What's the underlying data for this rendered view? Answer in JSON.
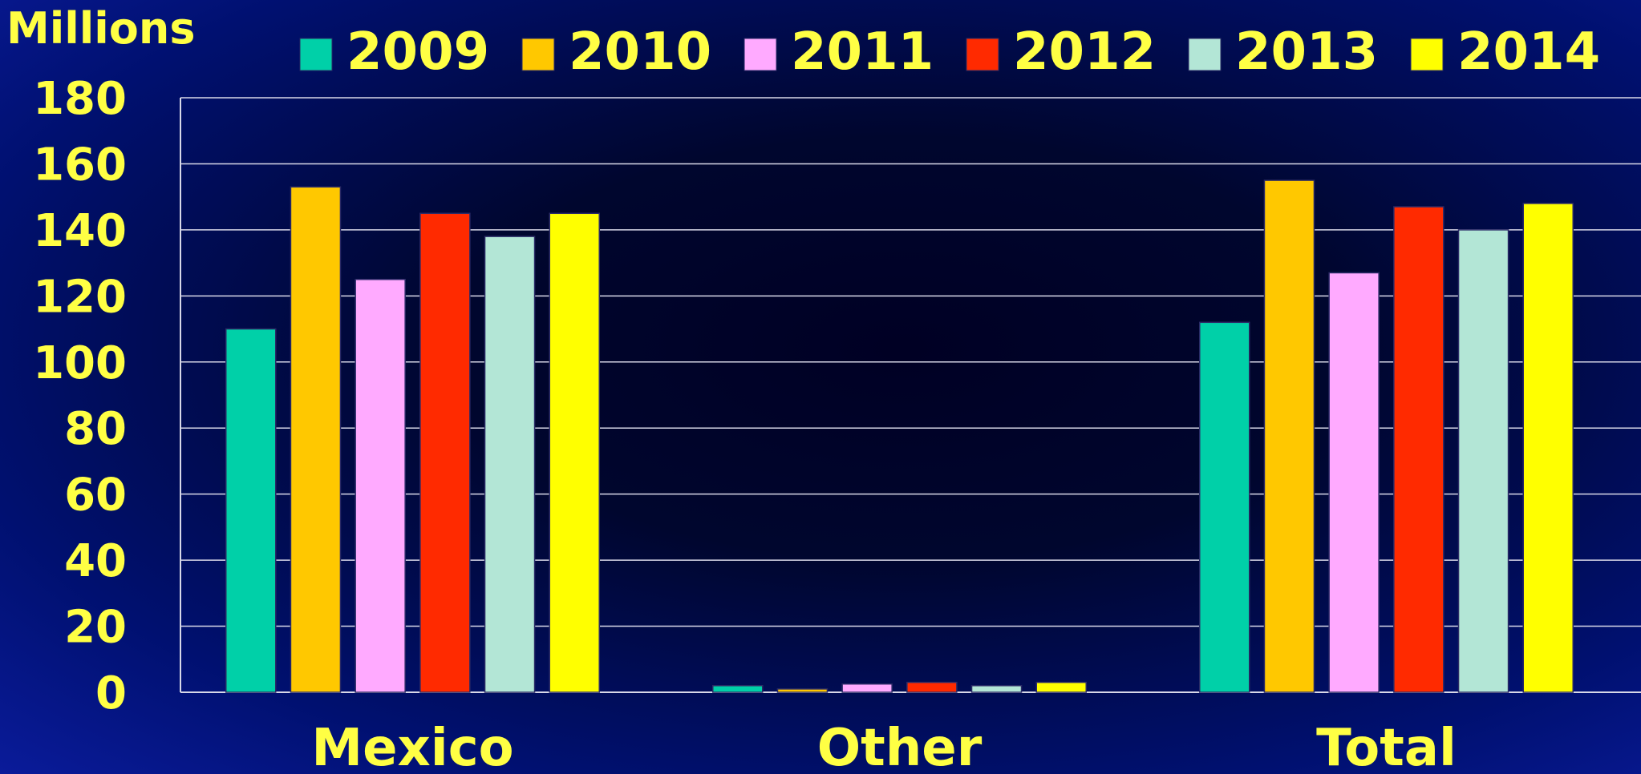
{
  "chart_data": {
    "type": "bar",
    "unit_label": "Millions",
    "categories": [
      "Mexico",
      "Other",
      "Total"
    ],
    "series": [
      {
        "name": "2009",
        "color": "#00d0a8",
        "values": [
          110,
          2,
          112
        ]
      },
      {
        "name": "2010",
        "color": "#ffc800",
        "values": [
          153,
          1,
          155
        ]
      },
      {
        "name": "2011",
        "color": "#ffaaff",
        "values": [
          125,
          2.5,
          127
        ]
      },
      {
        "name": "2012",
        "color": "#ff2a00",
        "values": [
          145,
          3,
          147
        ]
      },
      {
        "name": "2013",
        "color": "#b3e6d6",
        "values": [
          138,
          2,
          140
        ]
      },
      {
        "name": "2014",
        "color": "#ffff00",
        "values": [
          145,
          3,
          148
        ]
      }
    ],
    "ylim": [
      0,
      180
    ],
    "yticks": [
      0,
      20,
      40,
      60,
      80,
      100,
      120,
      140,
      160,
      180
    ],
    "grid": true,
    "legend_position": "top",
    "text_color": "#ffff44",
    "grid_color": "#d8d8e8"
  }
}
